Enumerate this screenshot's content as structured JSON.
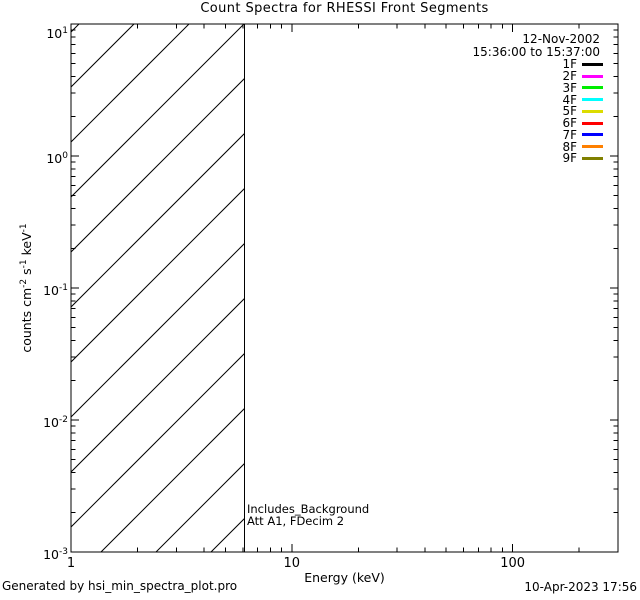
{
  "header": {
    "title": "Count Spectra for RHESSI Front Segments"
  },
  "legend": {
    "date": "12-Nov-2002",
    "time_range": "15:36:00 to 15:37:00",
    "entries": [
      {
        "label": "1F",
        "color": "#000000"
      },
      {
        "label": "2F",
        "color": "#ff00ff"
      },
      {
        "label": "3F",
        "color": "#00ee00"
      },
      {
        "label": "4F",
        "color": "#00ffff"
      },
      {
        "label": "5F",
        "color": "#dcdc00"
      },
      {
        "label": "6F",
        "color": "#ff0000"
      },
      {
        "label": "7F",
        "color": "#0000ff"
      },
      {
        "label": "8F",
        "color": "#ff8000"
      },
      {
        "label": "9F",
        "color": "#808000"
      }
    ]
  },
  "annotation": {
    "line1": "Includes_Background",
    "line2": "Att A1, FDecim 2"
  },
  "footer": {
    "generated_by": "Generated by hsi_min_spectra_plot.pro",
    "timestamp": "10-Apr-2023 17:56"
  },
  "chart_data": {
    "type": "line",
    "title": "Count Spectra for RHESSI Front Segments",
    "xlabel": "Energy (keV)",
    "ylabel": "counts cm^-2 s^-1 keV^-1",
    "ylabel_parts": [
      {
        "t": "counts cm"
      },
      {
        "sup": "-2"
      },
      {
        "t": " s"
      },
      {
        "sup": "-1"
      },
      {
        "t": " keV"
      },
      {
        "sup": "-1"
      }
    ],
    "xscale": "log",
    "yscale": "log",
    "xlim": [
      1,
      300
    ],
    "ylim": [
      0.001,
      10
    ],
    "x_major_ticks": [
      1,
      10,
      100
    ],
    "x_tick_labels": [
      "1",
      "10",
      "100"
    ],
    "y_major_exponents": [
      1,
      0,
      -1,
      -2,
      -3
    ],
    "grid": false,
    "legend_position": "top-right",
    "series": [],
    "hatched_region": {
      "x_min": 1,
      "x_max": 6.1,
      "style": "diagonal-hatch",
      "meaning": "below displayed energy range"
    },
    "vertical_line_x": 6.1,
    "frame_color": "#000000"
  }
}
